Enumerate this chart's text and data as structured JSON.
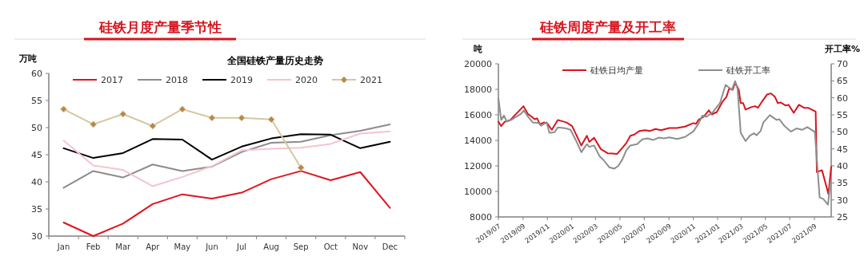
{
  "chart_data": [
    {
      "type": "line",
      "title": "硅铁月度产量季节性",
      "subtitle": "全国硅铁产量历史走势",
      "ylabel": "万吨",
      "categories": [
        "Jan",
        "Feb",
        "Mar",
        "Apr",
        "May",
        "Jun",
        "Jul",
        "Aug",
        "Sep",
        "Oct",
        "Nov",
        "Dec"
      ],
      "ylim": [
        30,
        60
      ],
      "yticks": [
        30,
        35,
        40,
        45,
        50,
        55,
        60
      ],
      "legend": "top",
      "series": [
        {
          "name": "2017",
          "color": "#e0141e",
          "values": [
            32.5,
            30.0,
            32.3,
            35.9,
            37.7,
            36.9,
            38.0,
            40.5,
            42.0,
            40.3,
            41.8,
            35.2
          ]
        },
        {
          "name": "2018",
          "color": "#8c8c8c",
          "values": [
            38.9,
            42.0,
            40.8,
            43.2,
            42.0,
            42.8,
            45.5,
            47.2,
            47.4,
            48.6,
            49.4,
            50.6
          ]
        },
        {
          "name": "2019",
          "color": "#000000",
          "values": [
            46.2,
            44.4,
            45.3,
            47.9,
            47.8,
            44.1,
            46.5,
            48.0,
            48.8,
            48.7,
            46.2,
            47.4
          ]
        },
        {
          "name": "2020",
          "color": "#f4c4cc",
          "values": [
            47.6,
            43.0,
            42.2,
            39.2,
            40.9,
            42.9,
            45.8,
            46.1,
            46.3,
            47.0,
            48.9,
            49.3
          ]
        },
        {
          "name": "2021",
          "color": "#d6c7a0",
          "marker": "diamond",
          "values": [
            53.4,
            50.6,
            52.5,
            50.3,
            53.4,
            51.8,
            51.8,
            51.5,
            42.6,
            null,
            null,
            null
          ]
        }
      ]
    },
    {
      "type": "line",
      "title": "硅铁周度产量及开工率",
      "ylabel": "吨",
      "y2label": "开工率%",
      "legend": "top",
      "xlim": [
        "2019-07-01",
        "2021-10-13"
      ],
      "xticks": [
        {
          "value": "2019-07",
          "label": "2019/07"
        },
        {
          "value": "2019-09",
          "label": "2019/09"
        },
        {
          "value": "2019-11",
          "label": "2019/11"
        },
        {
          "value": "2020-01",
          "label": "2020/01"
        },
        {
          "value": "2020-03",
          "label": "2020/03"
        },
        {
          "value": "2020-05",
          "label": "2020/05"
        },
        {
          "value": "2020-07",
          "label": "2020/07"
        },
        {
          "value": "2020-09",
          "label": "2020/09"
        },
        {
          "value": "2020-11",
          "label": "2020/11"
        },
        {
          "value": "2021-01",
          "label": "2021/01"
        },
        {
          "value": "2021-03",
          "label": "2021/03"
        },
        {
          "value": "2021-05",
          "label": "2021/05"
        },
        {
          "value": "2021-07",
          "label": "2021/07"
        },
        {
          "value": "2021-09",
          "label": "2021/09"
        }
      ],
      "ylim": [
        8000,
        20000
      ],
      "yticks": [
        8000,
        10000,
        12000,
        14000,
        16000,
        18000,
        20000
      ],
      "y2lim": [
        25,
        70
      ],
      "y2ticks": [
        25,
        30,
        35,
        40,
        45,
        50,
        55,
        60,
        65,
        70
      ],
      "series": [
        {
          "name": "硅铁日均产量",
          "color": "#d7141e",
          "x": [
            "2019-07-01",
            "2019-07-08",
            "2019-07-17",
            "2019-07-31",
            "2019-09-02",
            "2019-09-13",
            "2019-09-23",
            "2019-09-30",
            "2019-10-06",
            "2019-10-13",
            "2019-10-23",
            "2019-10-31",
            "2019-11-12",
            "2019-11-27",
            "2019-12-19",
            "2020-01-02",
            "2020-01-25",
            "2020-02-08",
            "2020-02-14",
            "2020-02-26",
            "2020-03-14",
            "2020-03-31",
            "2020-04-24",
            "2020-05-07",
            "2020-05-17",
            "2020-05-27",
            "2020-06-06",
            "2020-06-19",
            "2020-07-03",
            "2020-07-16",
            "2020-07-29",
            "2020-08-12",
            "2020-09-02",
            "2020-09-21",
            "2020-10-11",
            "2020-11-01",
            "2020-11-08",
            "2020-11-14",
            "2020-11-28",
            "2020-12-10",
            "2020-12-17",
            "2020-12-30",
            "2021-01-13",
            "2021-01-23",
            "2021-01-30",
            "2021-02-08",
            "2021-02-14",
            "2021-02-23",
            "2021-02-28",
            "2021-03-06",
            "2021-03-12",
            "2021-03-26",
            "2021-04-05",
            "2021-04-12",
            "2021-04-22",
            "2021-05-05",
            "2021-05-15",
            "2021-05-25",
            "2021-06-01",
            "2021-06-08",
            "2021-06-21",
            "2021-06-28",
            "2021-07-11",
            "2021-07-24",
            "2021-08-07",
            "2021-08-17",
            "2021-09-04",
            "2021-09-07",
            "2021-09-14",
            "2021-09-20",
            "2021-10-06",
            "2021-10-13"
          ],
          "values": [
            15460,
            15120,
            15460,
            15600,
            16680,
            16070,
            15840,
            15650,
            15730,
            15270,
            15400,
            15350,
            14830,
            15600,
            15400,
            15120,
            13600,
            14360,
            13880,
            14210,
            13320,
            12990,
            12940,
            13410,
            13790,
            14360,
            14450,
            14740,
            14800,
            14740,
            14890,
            14800,
            14970,
            14970,
            15080,
            15350,
            15300,
            15600,
            15880,
            16350,
            16030,
            16220,
            17020,
            17400,
            18060,
            17970,
            18540,
            17970,
            16920,
            16920,
            16410,
            16600,
            16680,
            16550,
            17020,
            17590,
            17680,
            17400,
            16920,
            16970,
            16730,
            16790,
            16160,
            16790,
            16540,
            16540,
            16260,
            11510,
            11600,
            11660,
            9800,
            11930
          ]
        },
        {
          "name": "硅铁开工率",
          "color": "#8e8e8e",
          "axis": "y2",
          "x": [
            "2019-07-01",
            "2019-07-08",
            "2019-07-15",
            "2019-07-22",
            "2019-08-02",
            "2019-08-27",
            "2019-09-03",
            "2019-09-13",
            "2019-09-25",
            "2019-10-10",
            "2019-10-16",
            "2019-10-30",
            "2019-11-06",
            "2019-11-19",
            "2019-11-27",
            "2019-12-15",
            "2019-12-29",
            "2020-01-12",
            "2020-01-25",
            "2020-02-08",
            "2020-02-14",
            "2020-02-26",
            "2020-03-11",
            "2020-03-21",
            "2020-04-04",
            "2020-04-17",
            "2020-04-27",
            "2020-05-07",
            "2020-05-17",
            "2020-05-27",
            "2020-06-13",
            "2020-06-26",
            "2020-07-09",
            "2020-07-23",
            "2020-08-06",
            "2020-08-19",
            "2020-09-02",
            "2020-09-21",
            "2020-10-11",
            "2020-11-01",
            "2020-11-14",
            "2020-11-24",
            "2020-12-04",
            "2020-12-20",
            "2021-01-07",
            "2021-01-21",
            "2021-02-06",
            "2021-02-14",
            "2021-02-20",
            "2021-02-28",
            "2021-03-12",
            "2021-03-23",
            "2021-04-02",
            "2021-04-09",
            "2021-04-19",
            "2021-04-26",
            "2021-05-12",
            "2021-05-29",
            "2021-06-05",
            "2021-06-18",
            "2021-07-04",
            "2021-07-18",
            "2021-08-01",
            "2021-08-14",
            "2021-09-02",
            "2021-09-14",
            "2021-09-23",
            "2021-10-05",
            "2021-10-11"
          ],
          "values": [
            59.9,
            53.5,
            54.8,
            53.0,
            53.5,
            55.3,
            56.3,
            54.5,
            52.8,
            52.6,
            51.8,
            52.8,
            49.7,
            49.9,
            51.3,
            51.1,
            50.6,
            47.4,
            44.0,
            46.4,
            45.6,
            46.0,
            42.8,
            41.7,
            39.6,
            39.2,
            40.0,
            41.9,
            44.6,
            46.0,
            46.4,
            47.8,
            48.1,
            47.6,
            48.3,
            48.1,
            48.4,
            47.9,
            48.5,
            50.1,
            52.4,
            54.8,
            54.4,
            55.8,
            58.5,
            63.8,
            62.4,
            64.9,
            62.7,
            49.7,
            47.3,
            48.9,
            49.6,
            49.0,
            50.3,
            52.8,
            54.9,
            53.5,
            53.7,
            51.7,
            50.1,
            51.0,
            50.6,
            51.4,
            50.0,
            30.7,
            30.3,
            28.6,
            35.3
          ]
        }
      ]
    }
  ]
}
